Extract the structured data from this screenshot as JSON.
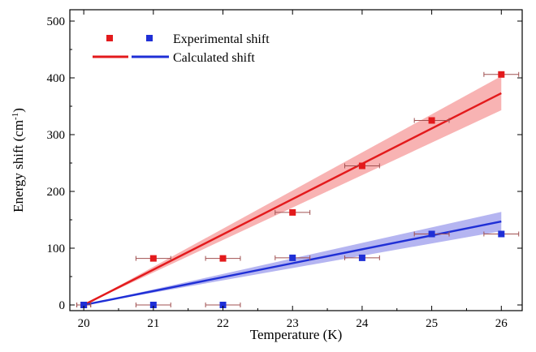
{
  "chart_data": {
    "type": "scatter",
    "xlabel": "Temperature (K)",
    "ylabel": "Energy shift (cm",
    "ylabel_sup": "-1",
    "ylabel_close": ")",
    "xlim": [
      19.8,
      26.3
    ],
    "ylim": [
      -10,
      520
    ],
    "xticks": [
      20,
      21,
      22,
      23,
      24,
      25,
      26
    ],
    "yticks": [
      0,
      100,
      200,
      300,
      400,
      500
    ],
    "grid": false,
    "legend_position": "top-left",
    "legend": {
      "experimental_label": "Experimental shift",
      "calculated_label": "Calculated shift"
    },
    "colors": {
      "red": "#e31a1c",
      "blue": "#1f2fd6",
      "red_band": "#f7a6a6",
      "blue_band": "#a8a8ef",
      "errorbar": "#a05050"
    },
    "series": [
      {
        "key": "red",
        "experimental": {
          "x": [
            20,
            21,
            22,
            23,
            24,
            25,
            26
          ],
          "y": [
            0,
            82,
            82,
            163,
            245,
            325,
            406
          ],
          "xerr": [
            0.1,
            0.25,
            0.25,
            0.25,
            0.25,
            0.25,
            0.25
          ]
        },
        "calculated": {
          "x": [
            20,
            26
          ],
          "y": [
            0,
            373
          ],
          "band_y": [
            0,
            30
          ]
        }
      },
      {
        "key": "blue",
        "experimental": {
          "x": [
            20,
            21,
            22,
            23,
            24,
            25,
            26
          ],
          "y": [
            0,
            0,
            0,
            83,
            83,
            125,
            125
          ],
          "xerr": [
            0.1,
            0.25,
            0.25,
            0.25,
            0.25,
            0.25,
            0.25
          ]
        },
        "calculated": {
          "x": [
            20,
            26
          ],
          "y": [
            0,
            147
          ],
          "band_y": [
            0,
            17
          ]
        }
      }
    ]
  }
}
